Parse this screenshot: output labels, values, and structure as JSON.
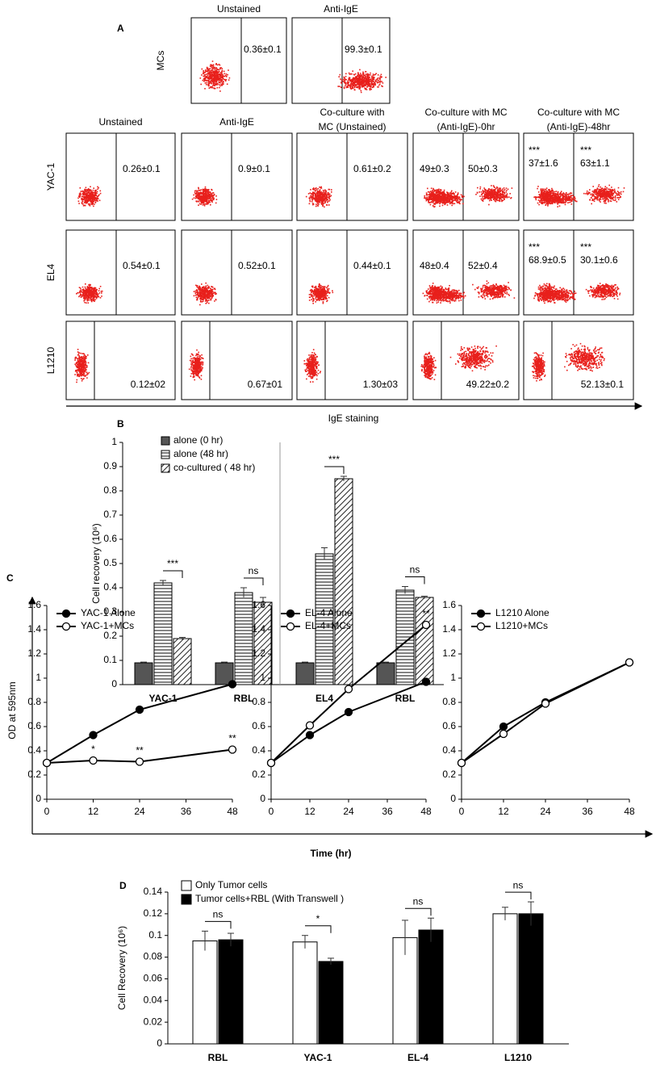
{
  "panel_labels": [
    "A",
    "B",
    "C",
    "D"
  ],
  "flow": {
    "top": {
      "label": "MCs",
      "headers": [
        "Unstained",
        "Anti-IgE"
      ],
      "cells": [
        [
          "0.36±0.1"
        ],
        [
          "99.3±0.1"
        ]
      ]
    },
    "headers": [
      [
        "Unstained"
      ],
      [
        "Anti-IgE"
      ],
      [
        "Co-culture with",
        "MC (Unstained)"
      ],
      [
        "Co-culture with MC",
        "(Anti-IgE)-0hr"
      ],
      [
        "Co-culture with MC",
        "(Anti-IgE)-48hr"
      ]
    ],
    "rows": [
      {
        "label": "YAC-1",
        "cells": [
          [
            "0.26±0.1"
          ],
          [
            "0.9±0.1"
          ],
          [
            "0.61±0.2"
          ],
          [
            "49±0.3",
            "50±0.3"
          ],
          [
            "***",
            "37±1.6",
            "***",
            "63±1.1"
          ]
        ]
      },
      {
        "label": "EL4",
        "cells": [
          [
            "0.54±0.1"
          ],
          [
            "0.52±0.1"
          ],
          [
            "0.44±0.1"
          ],
          [
            "48±0.4",
            "52±0.4"
          ],
          [
            "***",
            "68.9±0.5",
            "***",
            "30.1±0.6"
          ]
        ]
      },
      {
        "label": "L1210",
        "cells": [
          [
            "0.12±02"
          ],
          [
            "0.67±01"
          ],
          [
            "1.30±03"
          ],
          [
            "49.22±0.2"
          ],
          [
            "52.13±0.1"
          ]
        ]
      }
    ],
    "xlabel": "IgE staining"
  },
  "panel_c": {
    "ylabel": "OD at 595nm",
    "xlabel": "Time (hr)"
  },
  "chart_data": [
    {
      "type": "bar",
      "ylabel": "Cell recovery (10⁶)",
      "categories": [
        "YAC-1",
        "RBL",
        "EL4",
        "RBL"
      ],
      "series": [
        {
          "name": "alone (0 hr)",
          "color": "#555555",
          "pattern": "solid",
          "values": [
            0.09,
            0.09,
            0.09,
            0.09
          ],
          "errors": [
            0.003,
            0.003,
            0.003,
            0.003
          ]
        },
        {
          "name": "alone  (48 hr)",
          "color": "#ffffff",
          "pattern": "horizontal",
          "values": [
            0.42,
            0.38,
            0.54,
            0.39
          ],
          "errors": [
            0.01,
            0.02,
            0.025,
            0.015
          ]
        },
        {
          "name": "co-cultured ( 48 hr)",
          "color": "#ffffff",
          "pattern": "diagonal",
          "values": [
            0.19,
            0.34,
            0.85,
            0.36
          ],
          "errors": [
            0.005,
            0.02,
            0.01,
            0.005
          ]
        }
      ],
      "annotations": [
        "***",
        "ns",
        "***",
        "ns"
      ],
      "ylim": [
        0,
        1
      ],
      "yticks": [
        0,
        0.1,
        0.2,
        0.3,
        0.4,
        0.5,
        0.6,
        0.7,
        0.8,
        0.9,
        1
      ]
    },
    {
      "type": "line",
      "x": [
        0,
        12,
        24,
        48
      ],
      "xlim": [
        0,
        48
      ],
      "xticks": [
        0,
        12,
        24,
        36,
        48
      ],
      "ylim": [
        0,
        1.6
      ],
      "yticks": [
        0,
        0.2,
        0.4,
        0.6,
        0.8,
        1,
        1.2,
        1.4,
        1.6
      ],
      "series": [
        {
          "name": "YAC-1 Alone",
          "color": "#000000",
          "marker": "filled",
          "values": [
            0.3,
            0.53,
            0.74,
            0.95
          ]
        },
        {
          "name": "YAC-1+MCs",
          "color": "#000000",
          "marker": "open",
          "values": [
            0.3,
            0.32,
            0.31,
            0.41
          ]
        }
      ],
      "annotations": [
        {
          "x": 12,
          "text": "*"
        },
        {
          "x": 24,
          "text": "**"
        },
        {
          "x": 48,
          "text": "**"
        }
      ]
    },
    {
      "type": "line",
      "x": [
        0,
        12,
        24,
        48
      ],
      "xlim": [
        0,
        48
      ],
      "xticks": [
        0,
        12,
        24,
        36,
        48
      ],
      "ylim": [
        0,
        1.6
      ],
      "yticks": [
        0,
        0.2,
        0.4,
        0.6,
        0.8,
        1,
        1.2,
        1.4,
        1.6
      ],
      "series": [
        {
          "name": "EL-4 Alone",
          "color": "#000000",
          "marker": "filled",
          "values": [
            0.3,
            0.53,
            0.72,
            0.97
          ]
        },
        {
          "name": "EL-4+MCs",
          "color": "#000000",
          "marker": "open",
          "values": [
            0.3,
            0.61,
            0.91,
            1.44
          ]
        }
      ],
      "annotations": [
        {
          "x": 48,
          "text": "**"
        }
      ]
    },
    {
      "type": "line",
      "x": [
        0,
        12,
        24,
        48
      ],
      "xlim": [
        0,
        48
      ],
      "xticks": [
        0,
        12,
        24,
        36,
        48
      ],
      "ylim": [
        0,
        1.6
      ],
      "yticks": [
        0,
        0.2,
        0.4,
        0.6,
        0.8,
        1,
        1.2,
        1.4,
        1.6
      ],
      "series": [
        {
          "name": "L1210 Alone",
          "color": "#000000",
          "marker": "filled",
          "values": [
            0.3,
            0.6,
            0.8,
            1.13
          ]
        },
        {
          "name": "L1210+MCs",
          "color": "#000000",
          "marker": "open",
          "values": [
            0.3,
            0.54,
            0.79,
            1.13
          ]
        }
      ],
      "annotations": []
    },
    {
      "type": "bar",
      "ylabel": "Cell Recovery (10⁶)",
      "categories": [
        "RBL",
        "YAC-1",
        "EL-4",
        "L1210"
      ],
      "series": [
        {
          "name": "Only Tumor cells",
          "color": "#ffffff",
          "pattern": "solid",
          "values": [
            0.095,
            0.094,
            0.098,
            0.12
          ],
          "errors": [
            0.009,
            0.006,
            0.016,
            0.006
          ]
        },
        {
          "name": "Tumor cells+RBL (With Transwell )",
          "color": "#000000",
          "pattern": "solid",
          "values": [
            0.096,
            0.076,
            0.105,
            0.12
          ],
          "errors": [
            0.006,
            0.003,
            0.011,
            0.011
          ]
        }
      ],
      "annotations": [
        "ns",
        "*",
        "ns",
        "ns"
      ],
      "ylim": [
        0,
        0.14
      ],
      "yticks": [
        0,
        0.02,
        0.04,
        0.06,
        0.08,
        0.1,
        0.12,
        0.14
      ]
    }
  ]
}
